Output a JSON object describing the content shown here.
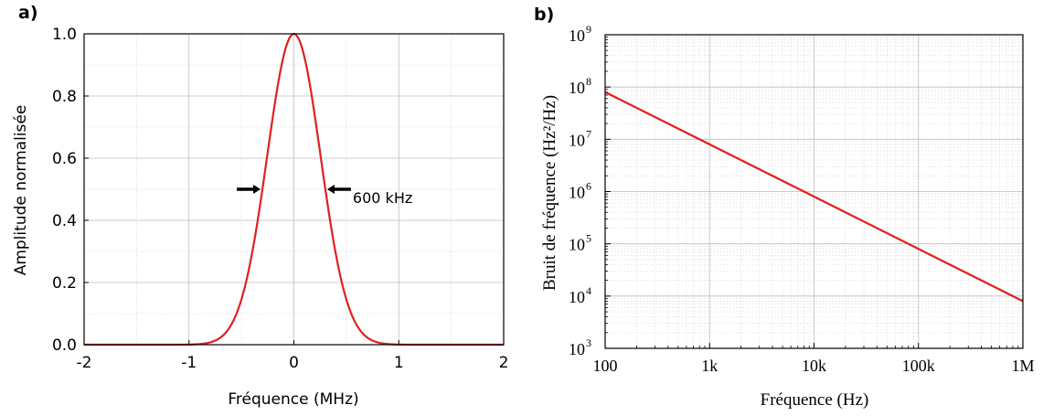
{
  "panels": {
    "a_label": "a)",
    "b_label": "b)"
  },
  "colors": {
    "curve": "#e02020",
    "grid_major": "#bdbdbd",
    "grid_minor": "#dcdcdc",
    "axis": "#000000"
  },
  "chart_data": [
    {
      "type": "line",
      "panel": "a",
      "title": "",
      "xlabel": "Fréquence (MHz)",
      "ylabel": "Amplitude normalisée",
      "xlim": [
        -2,
        2
      ],
      "ylim": [
        0,
        1
      ],
      "x_ticks": [
        -2,
        -1,
        0,
        1,
        2
      ],
      "x_tick_labels": [
        "-2",
        "-1",
        "0",
        "1",
        "2"
      ],
      "y_ticks": [
        0,
        0.2,
        0.4,
        0.6,
        0.8,
        1.0
      ],
      "y_tick_labels": [
        "0.0",
        "0.2",
        "0.4",
        "0.6",
        "0.8",
        "1.0"
      ],
      "grid": true,
      "series": [
        {
          "x": [
            -2,
            -1.5,
            -1.2,
            -1.0,
            -0.8,
            -0.7,
            -0.6,
            -0.5,
            -0.4,
            -0.3,
            -0.2,
            -0.1,
            0,
            0.1,
            0.2,
            0.3,
            0.4,
            0.5,
            0.6,
            0.7,
            0.8,
            1.0,
            1.2,
            1.5,
            2
          ],
          "y": [
            0,
            0.001,
            0.004,
            0.015,
            0.05,
            0.09,
            0.16,
            0.26,
            0.39,
            0.54,
            0.74,
            0.93,
            1.0,
            0.93,
            0.74,
            0.54,
            0.39,
            0.26,
            0.16,
            0.09,
            0.05,
            0.015,
            0.004,
            0.001,
            0
          ]
        }
      ],
      "annotations": [
        {
          "text": "600 kHz",
          "marker": "fwhm-arrows",
          "half_width_mhz": 0.3,
          "level": 0.5
        }
      ]
    },
    {
      "type": "line",
      "panel": "b",
      "title": "",
      "xlabel": "Fréquence (Hz)",
      "ylabel": "Bruit de fréquence (Hz²/Hz)",
      "xscale": "log",
      "yscale": "log",
      "xlim": [
        100,
        1000000
      ],
      "ylim": [
        1000,
        1000000000
      ],
      "x_ticks": [
        100,
        1000,
        10000,
        100000,
        1000000
      ],
      "x_tick_labels": [
        "100",
        "1k",
        "10k",
        "100k",
        "1M"
      ],
      "y_ticks": [
        1000,
        10000,
        100000,
        1000000,
        10000000,
        100000000,
        1000000000
      ],
      "y_tick_labels": [
        "10",
        "10",
        "10",
        "10",
        "10",
        "10",
        "10"
      ],
      "y_tick_exponents": [
        "3",
        "4",
        "5",
        "6",
        "7",
        "8",
        "9"
      ],
      "grid": true,
      "series": [
        {
          "x": [
            100,
            1000000
          ],
          "y": [
            80000000,
            8000
          ]
        }
      ]
    }
  ]
}
